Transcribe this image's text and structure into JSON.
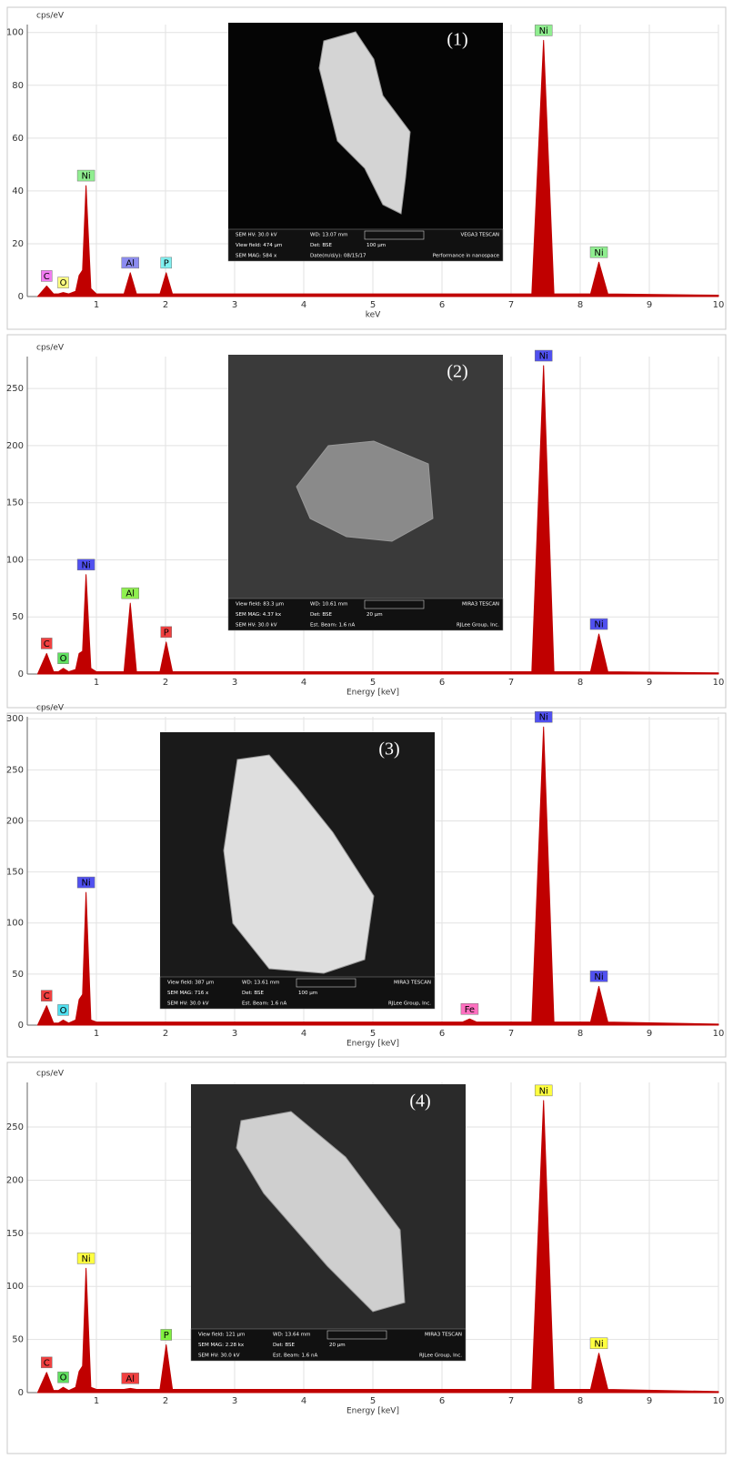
{
  "chart_data": [
    {
      "type": "area",
      "y_label": "cps/eV",
      "x_label": "keV",
      "xlim": [
        0,
        10
      ],
      "xticks": [
        1,
        2,
        3,
        4,
        5,
        6,
        7,
        8,
        9,
        10
      ],
      "ylim": [
        0,
        103
      ],
      "yticks": [
        0,
        20,
        40,
        60,
        80,
        100
      ],
      "grid": true,
      "x": [
        0.15,
        0.28,
        0.38,
        0.45,
        0.52,
        0.6,
        0.7,
        0.75,
        0.8,
        0.85,
        0.92,
        1.0,
        1.4,
        1.49,
        1.58,
        1.92,
        2.01,
        2.1,
        6.3,
        6.4,
        6.5,
        7.3,
        7.47,
        7.62,
        8.15,
        8.27,
        8.4,
        10
      ],
      "series": [
        {
          "color": "#c00000",
          "values": [
            0,
            4,
            1,
            1,
            1.5,
            1,
            2,
            8,
            10,
            42,
            3,
            1,
            1,
            9,
            1,
            1,
            9,
            1,
            1,
            1,
            1,
            1,
            97,
            1,
            1,
            13,
            1,
            0.5
          ]
        }
      ],
      "annotations": [
        {
          "text": "C",
          "x": 0.28,
          "color": "#f07cf0"
        },
        {
          "text": "O",
          "x": 0.52,
          "color": "#ffff80"
        },
        {
          "text": "Ni",
          "x": 0.85,
          "color": "#90ee90"
        },
        {
          "text": "Al",
          "x": 1.49,
          "color": "#8c8cf0"
        },
        {
          "text": "P",
          "x": 2.01,
          "color": "#80f0f0"
        },
        {
          "text": "Ni",
          "x": 7.47,
          "color": "#90ee90"
        },
        {
          "text": "Ni",
          "x": 8.27,
          "color": "#90ee90"
        }
      ],
      "inset": {
        "label": "(1)",
        "info": [
          [
            "SEM HV: 30.0 kV",
            "WD: 13.07 mm",
            "VEGA3 TESCAN"
          ],
          [
            "View field: 474 µm",
            "Det: BSE",
            "100 µm"
          ],
          [
            "SEM MAG: 584 x",
            "Date(m/d/y): 08/15/17",
            "Performance in nanospace"
          ]
        ]
      }
    },
    {
      "type": "area",
      "y_label": "cps/eV",
      "x_label": "Energy [keV]",
      "xlim": [
        0,
        10
      ],
      "xticks": [
        1,
        2,
        3,
        4,
        5,
        6,
        7,
        8,
        9,
        10
      ],
      "ylim": [
        0,
        278
      ],
      "yticks": [
        0,
        50,
        100,
        150,
        200,
        250
      ],
      "grid": true,
      "x": [
        0.15,
        0.28,
        0.38,
        0.45,
        0.52,
        0.6,
        0.7,
        0.75,
        0.8,
        0.85,
        0.92,
        1.0,
        1.4,
        1.49,
        1.58,
        1.92,
        2.01,
        2.1,
        6.3,
        6.4,
        6.5,
        7.3,
        7.47,
        7.62,
        8.15,
        8.27,
        8.4,
        10
      ],
      "series": [
        {
          "color": "#c00000",
          "values": [
            0,
            18,
            2,
            2,
            5,
            2,
            4,
            18,
            20,
            87,
            5,
            2,
            2,
            62,
            2,
            2,
            28,
            2,
            2,
            2,
            2,
            2,
            270,
            2,
            2,
            35,
            2,
            1
          ]
        }
      ],
      "annotations": [
        {
          "text": "C",
          "x": 0.28,
          "color": "#f04040"
        },
        {
          "text": "O",
          "x": 0.52,
          "color": "#60e060"
        },
        {
          "text": "Ni",
          "x": 0.85,
          "color": "#5050f0"
        },
        {
          "text": "Al",
          "x": 1.49,
          "color": "#90f050"
        },
        {
          "text": "P",
          "x": 2.01,
          "color": "#f04040"
        },
        {
          "text": "Ni",
          "x": 7.47,
          "color": "#5050f0"
        },
        {
          "text": "Ni",
          "x": 8.27,
          "color": "#5050f0"
        }
      ],
      "inset": {
        "label": "(2)",
        "info": [
          [
            "View field: 83.3 µm",
            "WD: 10.61 mm",
            "MIRA3 TESCAN"
          ],
          [
            "SEM MAG: 4.37 kx",
            "Det: BSE",
            "20 µm"
          ],
          [
            "SEM HV: 30.0 kV",
            "Est. Beam: 1.6 nA",
            "RJLee Group, Inc."
          ]
        ]
      }
    },
    {
      "type": "area",
      "y_label": "cps/eV",
      "x_label": "Energy [keV]",
      "xlim": [
        0,
        10
      ],
      "xticks": [
        1,
        2,
        3,
        4,
        5,
        6,
        7,
        8,
        9,
        10
      ],
      "ylim": [
        0,
        302
      ],
      "yticks": [
        0,
        50,
        100,
        150,
        200,
        250,
        300
      ],
      "grid": true,
      "x": [
        0.15,
        0.28,
        0.38,
        0.45,
        0.52,
        0.6,
        0.7,
        0.75,
        0.8,
        0.85,
        0.92,
        1.0,
        1.4,
        1.49,
        1.58,
        1.92,
        2.01,
        2.1,
        6.3,
        6.4,
        6.5,
        7.3,
        7.47,
        7.62,
        8.15,
        8.27,
        8.4,
        10
      ],
      "series": [
        {
          "color": "#c00000",
          "values": [
            0,
            19,
            2,
            2,
            5,
            2,
            5,
            25,
            30,
            130,
            5,
            3,
            3,
            3,
            3,
            3,
            3,
            3,
            3,
            6,
            3,
            3,
            292,
            3,
            3,
            38,
            3,
            1
          ]
        }
      ],
      "annotations": [
        {
          "text": "C",
          "x": 0.28,
          "color": "#f04040"
        },
        {
          "text": "O",
          "x": 0.52,
          "color": "#50e0f0"
        },
        {
          "text": "Ni",
          "x": 0.85,
          "color": "#5050f0"
        },
        {
          "text": "Fe",
          "x": 6.4,
          "color": "#ff70c0"
        },
        {
          "text": "Ni",
          "x": 7.47,
          "color": "#5050f0"
        },
        {
          "text": "Ni",
          "x": 8.27,
          "color": "#5050f0"
        }
      ],
      "inset": {
        "label": "(3)",
        "info": [
          [
            "View field: 387 µm",
            "WD: 13.61 mm",
            "MIRA3 TESCAN"
          ],
          [
            "SEM MAG: 716 x",
            "Det: BSE",
            "100 µm"
          ],
          [
            "SEM HV: 30.0 kV",
            "Est. Beam: 1.6 nA",
            "RJLee Group, Inc."
          ]
        ]
      }
    },
    {
      "type": "area",
      "y_label": "cps/eV",
      "x_label": "Energy [keV]",
      "xlim": [
        0,
        10
      ],
      "xticks": [
        1,
        2,
        3,
        4,
        5,
        6,
        7,
        8,
        9,
        10
      ],
      "ylim": [
        0,
        292
      ],
      "yticks": [
        0,
        50,
        100,
        150,
        200,
        250
      ],
      "grid": true,
      "x": [
        0.15,
        0.28,
        0.38,
        0.45,
        0.52,
        0.6,
        0.7,
        0.75,
        0.8,
        0.85,
        0.92,
        1.0,
        1.4,
        1.49,
        1.58,
        1.92,
        2.01,
        2.1,
        6.3,
        6.4,
        6.5,
        7.3,
        7.47,
        7.62,
        8.15,
        8.27,
        8.4,
        10
      ],
      "series": [
        {
          "color": "#c00000",
          "values": [
            0,
            19,
            2,
            2,
            5,
            2,
            5,
            20,
            25,
            117,
            5,
            3,
            3,
            4,
            3,
            3,
            45,
            3,
            3,
            3,
            3,
            3,
            275,
            3,
            3,
            37,
            3,
            1
          ]
        }
      ],
      "annotations": [
        {
          "text": "C",
          "x": 0.28,
          "color": "#f04040"
        },
        {
          "text": "O",
          "x": 0.52,
          "color": "#60e060"
        },
        {
          "text": "Ni",
          "x": 0.85,
          "color": "#ffff40"
        },
        {
          "text": "Al",
          "x": 1.49,
          "color": "#f04040"
        },
        {
          "text": "P",
          "x": 2.01,
          "color": "#80f040"
        },
        {
          "text": "Ni",
          "x": 7.47,
          "color": "#ffff40"
        },
        {
          "text": "Ni",
          "x": 8.27,
          "color": "#ffff40"
        }
      ],
      "inset": {
        "label": "(4)",
        "info": [
          [
            "View field: 121 µm",
            "WD: 13.64 mm",
            "MIRA3 TESCAN"
          ],
          [
            "SEM MAG: 2.28 kx",
            "Det: BSE",
            "20 µm"
          ],
          [
            "SEM HV: 30.0 kV",
            "Est. Beam: 1.6 nA",
            "RJLee Group, Inc."
          ]
        ]
      }
    }
  ]
}
